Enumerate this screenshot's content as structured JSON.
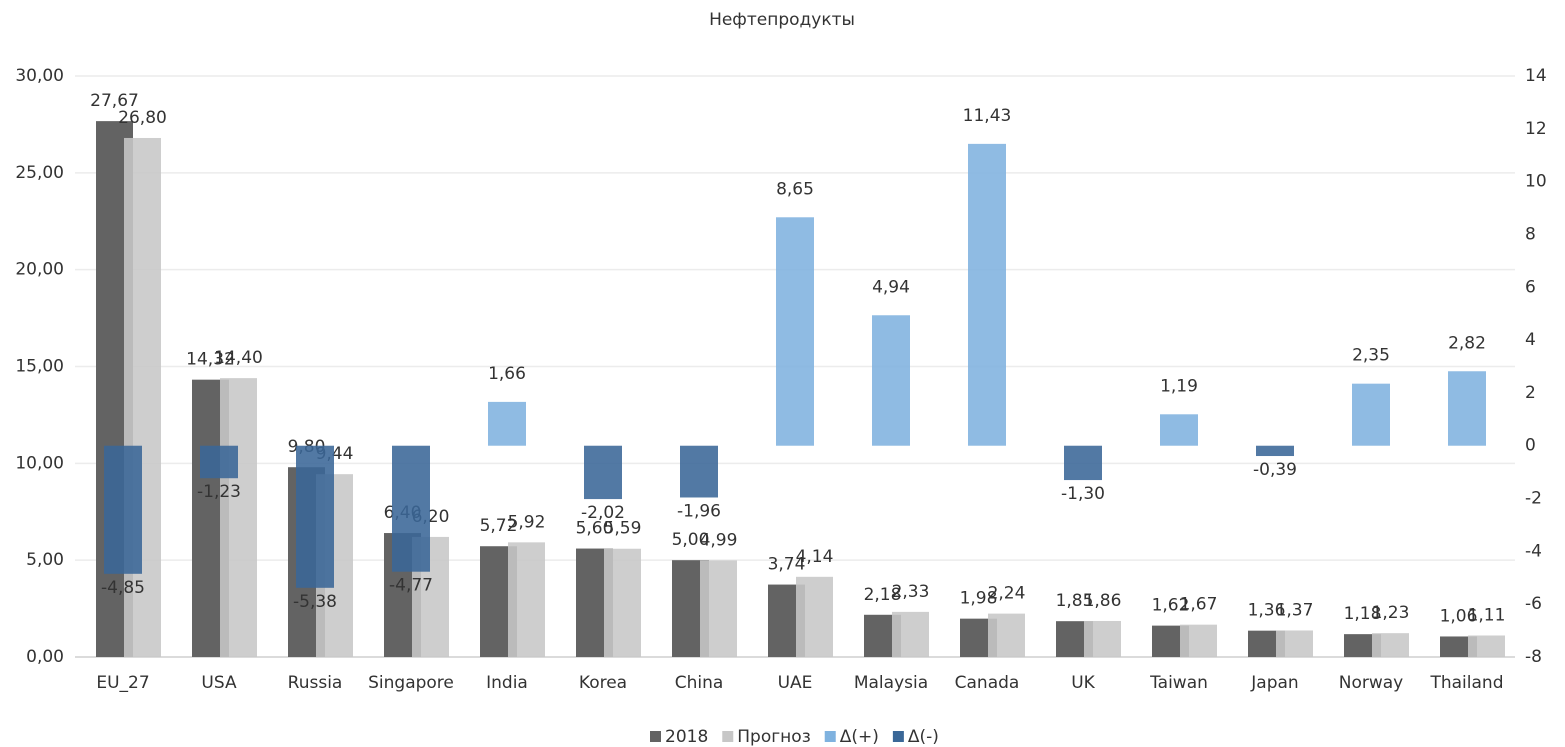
{
  "chart_data": {
    "type": "bar",
    "title": "Нефтепродукты",
    "categories": [
      "EU_27",
      "USA",
      "Russia",
      "Singapore",
      "India",
      "Korea",
      "China",
      "UAE",
      "Malaysia",
      "Canada",
      "UK",
      "Taiwan",
      "Japan",
      "Norway",
      "Thailand"
    ],
    "series": [
      {
        "name": "2018",
        "color": "#636363",
        "values": [
          27.67,
          14.32,
          9.8,
          6.4,
          5.72,
          5.6,
          5.0,
          3.74,
          2.18,
          1.98,
          1.85,
          1.62,
          1.36,
          1.18,
          1.06
        ],
        "value_labels": [
          "27,67",
          "14,32",
          "9,80",
          "6,40",
          "5,72",
          "5,60",
          "5,00",
          "3,74",
          "2,18",
          "1,98",
          "1,85",
          "1,62",
          "1,36",
          "1,18",
          "1,06"
        ]
      },
      {
        "name": "Прогноз",
        "color": "#c7c7c7",
        "values": [
          26.8,
          14.4,
          9.44,
          6.2,
          5.92,
          5.59,
          4.99,
          4.14,
          2.33,
          2.24,
          1.86,
          1.67,
          1.37,
          1.23,
          1.11
        ],
        "value_labels": [
          "26,80",
          "14,40",
          "9,44",
          "6,20",
          "5,92",
          "5,59",
          "4,99",
          "4,14",
          "2,33",
          "2,24",
          "1,86",
          "1,67",
          "1,37",
          "1,23",
          "1,11"
        ]
      },
      {
        "name": "Δ(+)",
        "color": "#7fb2df",
        "axis": "y2",
        "values": [
          null,
          null,
          null,
          null,
          1.66,
          null,
          null,
          8.65,
          4.94,
          11.43,
          null,
          1.19,
          null,
          2.35,
          2.82
        ],
        "value_labels": [
          null,
          null,
          null,
          null,
          "1,66",
          null,
          null,
          "8,65",
          "4,94",
          "11,43",
          null,
          "1,19",
          null,
          "2,35",
          "2,82"
        ]
      },
      {
        "name": "Δ(-)",
        "color": "#3a6797",
        "axis": "y2",
        "values": [
          -4.85,
          -1.23,
          -5.38,
          -4.77,
          null,
          -2.02,
          -1.96,
          null,
          null,
          null,
          -1.3,
          null,
          -0.39,
          null,
          null
        ],
        "value_labels": [
          "-4,85",
          "-1,23",
          "-5,38",
          "-4,77",
          null,
          "-2,02",
          "-1,96",
          null,
          null,
          null,
          "-1,30",
          null,
          "-0,39",
          null,
          null
        ]
      }
    ],
    "ylim": [
      0,
      30
    ],
    "yticks": [
      {
        "value": 0,
        "label": "0,00"
      },
      {
        "value": 5,
        "label": "5,00"
      },
      {
        "value": 10,
        "label": "10,00"
      },
      {
        "value": 15,
        "label": "15,00"
      },
      {
        "value": 20,
        "label": "20,00"
      },
      {
        "value": 25,
        "label": "25,00"
      },
      {
        "value": 30,
        "label": "30,00"
      }
    ],
    "y2lim": [
      -8,
      14
    ],
    "y2ticks": [
      -8,
      -6,
      -4,
      -2,
      0,
      2,
      4,
      6,
      8,
      10,
      12,
      14
    ],
    "grid": true,
    "legend": "bottom"
  }
}
